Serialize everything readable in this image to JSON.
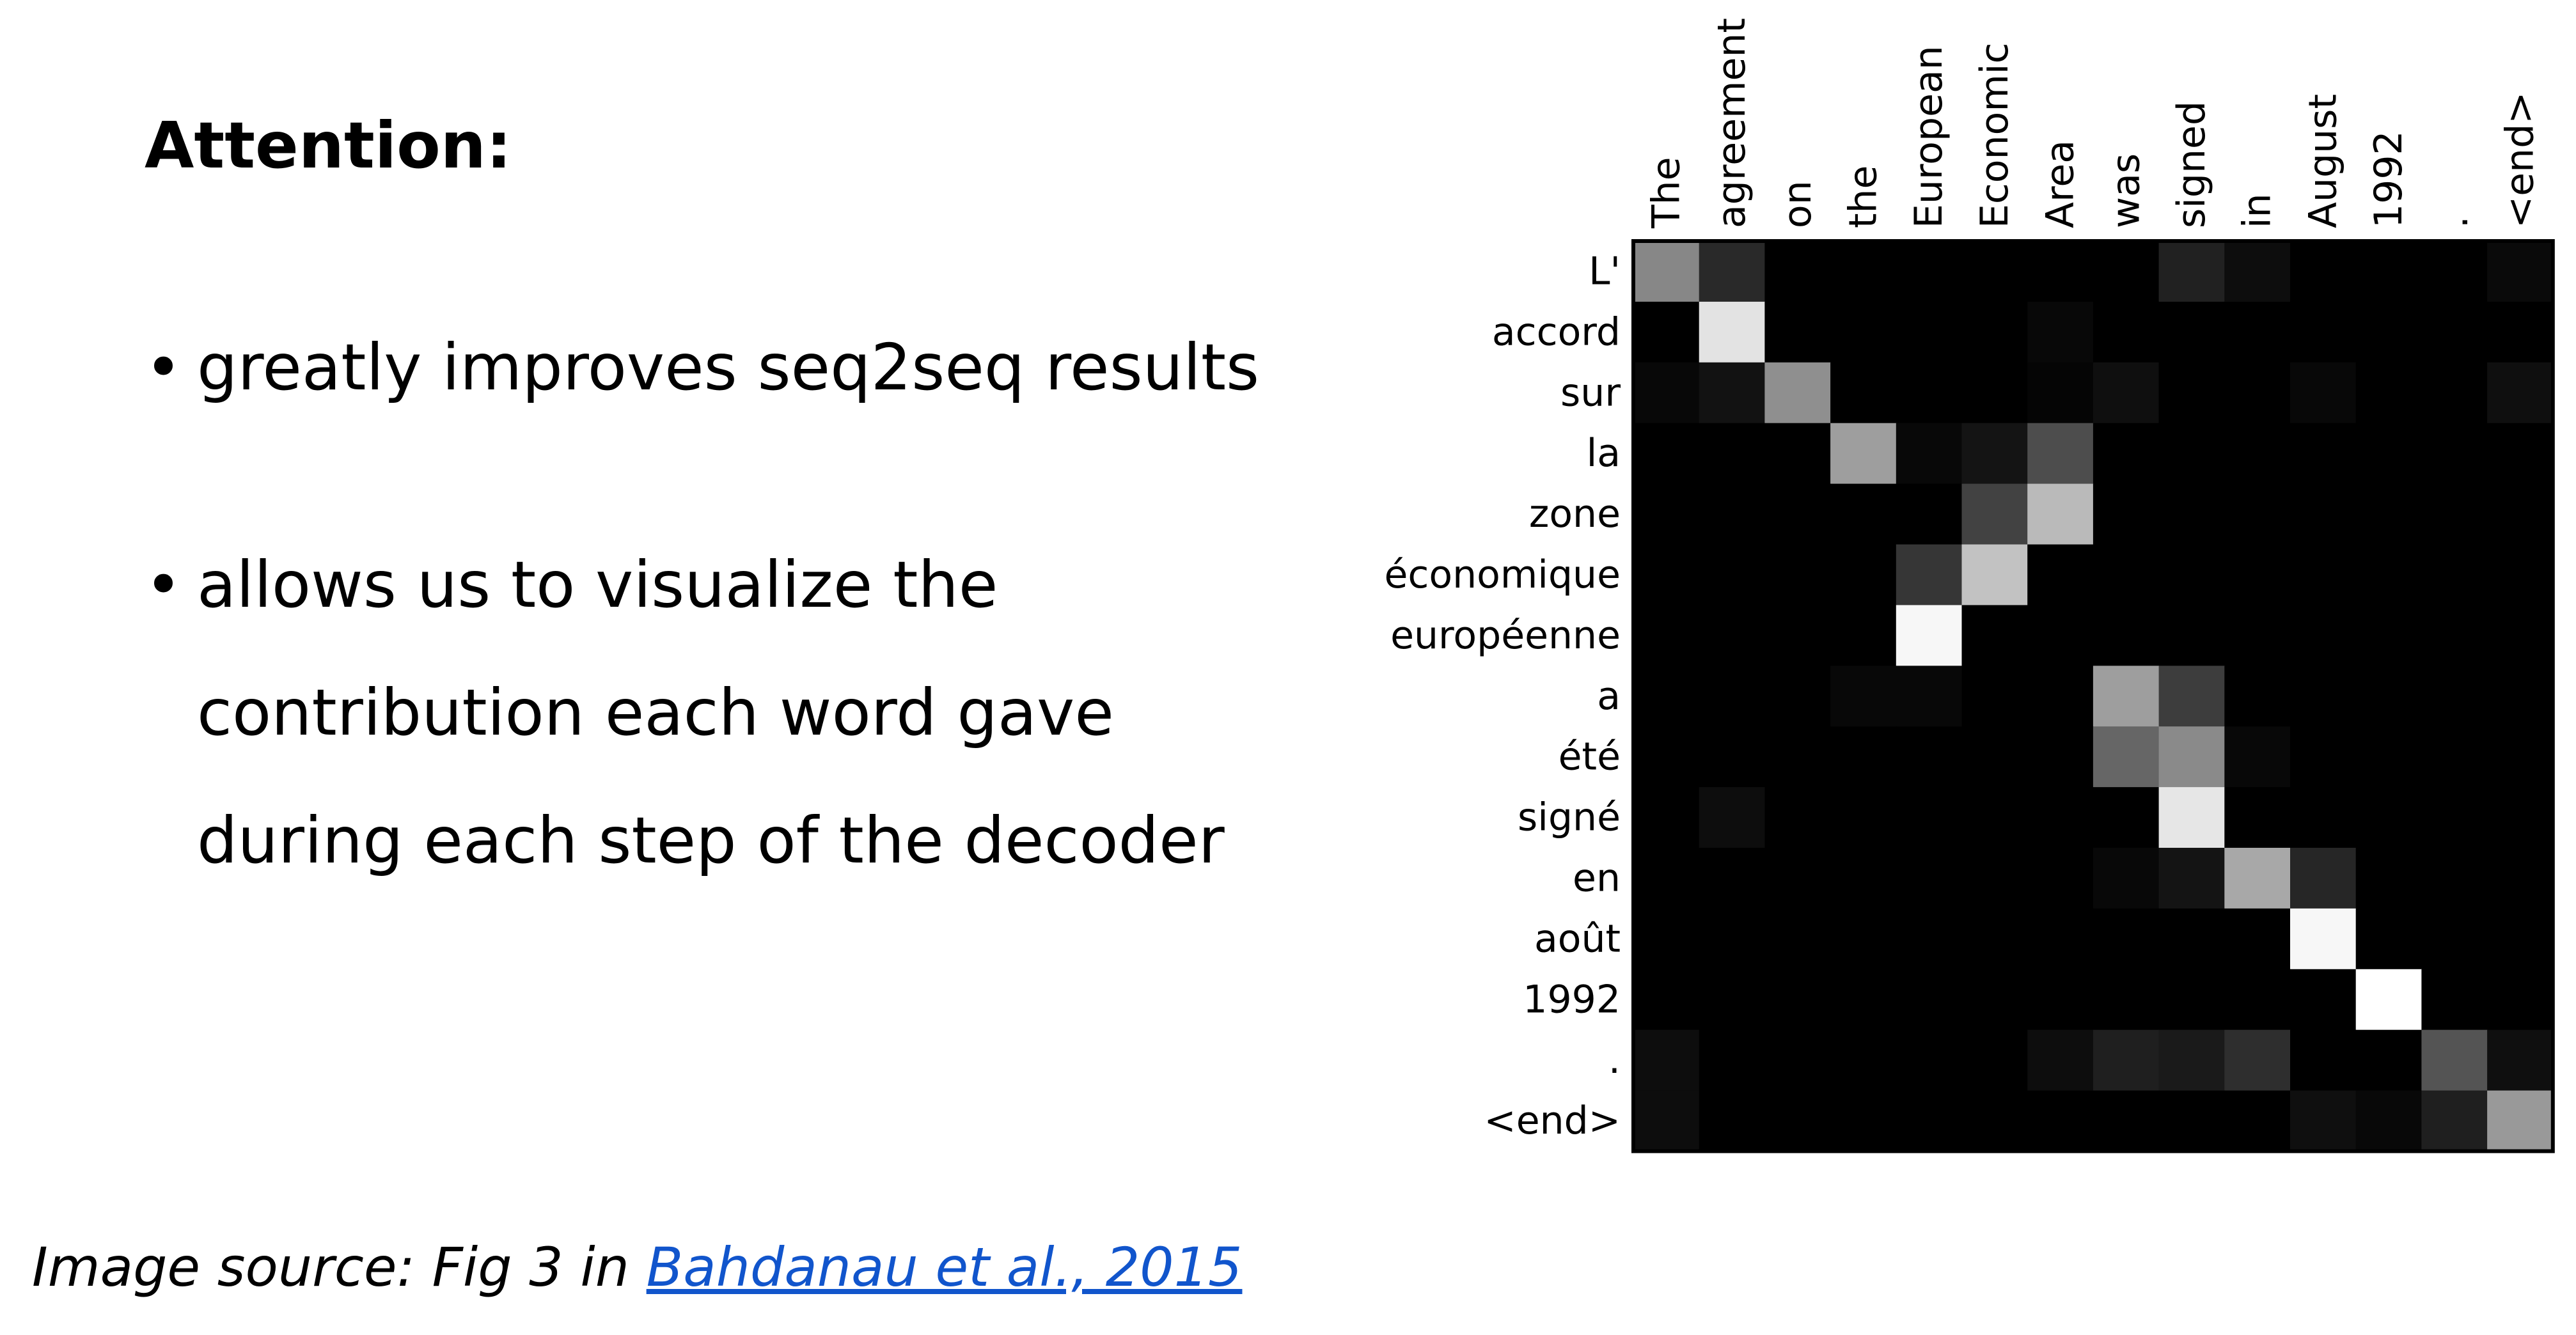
{
  "heading": "Attention:",
  "bullets": [
    {
      "lines": [
        "greatly improves seq2seq results"
      ]
    },
    {
      "lines": [
        "allows us to visualize the",
        "contribution each word gave",
        "during each step of the decoder"
      ]
    }
  ],
  "bullet_glyph": "•",
  "source": {
    "prefix": "Image source: Fig 3 in ",
    "link_text": "Bahdanau et al., 2015"
  },
  "colors": {
    "link": "#1155cc",
    "matrix_background": "#000000"
  },
  "chart_data": {
    "type": "heatmap",
    "x_labels": [
      "The",
      "agreement",
      "on",
      "the",
      "European",
      "Economic",
      "Area",
      "was",
      "signed",
      "in",
      "August",
      "1992",
      ".",
      "<end>"
    ],
    "y_labels": [
      "L'",
      "accord",
      "sur",
      "la",
      "zone",
      "économique",
      "européenne",
      "a",
      "été",
      "signé",
      "en",
      "août",
      "1992",
      ".",
      "<end>"
    ],
    "x_axis_position": "top",
    "colormap": "grayscale (black = 0, white = 1)",
    "values": [
      [
        0.53,
        0.16,
        0,
        0,
        0,
        0,
        0,
        0,
        0.13,
        0.05,
        0,
        0,
        0,
        0.04
      ],
      [
        0,
        0.89,
        0,
        0,
        0,
        0,
        0.03,
        0,
        0,
        0,
        0,
        0,
        0,
        0
      ],
      [
        0.03,
        0.07,
        0.56,
        0,
        0,
        0,
        0.02,
        0.06,
        0,
        0,
        0.03,
        0,
        0,
        0.06
      ],
      [
        0,
        0,
        0,
        0.62,
        0.03,
        0.08,
        0.3,
        0,
        0,
        0,
        0,
        0,
        0,
        0
      ],
      [
        0,
        0,
        0,
        0,
        0,
        0.26,
        0.73,
        0,
        0,
        0,
        0,
        0,
        0,
        0
      ],
      [
        0,
        0,
        0,
        0,
        0.21,
        0.76,
        0,
        0,
        0,
        0,
        0,
        0,
        0,
        0
      ],
      [
        0,
        0,
        0,
        0,
        0.97,
        0,
        0,
        0,
        0,
        0,
        0,
        0,
        0,
        0
      ],
      [
        0,
        0,
        0,
        0.03,
        0.03,
        0,
        0,
        0.62,
        0.24,
        0,
        0,
        0,
        0,
        0
      ],
      [
        0,
        0,
        0,
        0,
        0,
        0,
        0,
        0.4,
        0.54,
        0.03,
        0,
        0,
        0,
        0
      ],
      [
        0,
        0.05,
        0,
        0,
        0,
        0,
        0,
        0,
        0.9,
        0,
        0,
        0,
        0,
        0
      ],
      [
        0,
        0,
        0,
        0,
        0,
        0,
        0,
        0.03,
        0.08,
        0.66,
        0.15,
        0,
        0,
        0
      ],
      [
        0,
        0,
        0,
        0,
        0,
        0,
        0,
        0,
        0,
        0,
        0.97,
        0,
        0,
        0
      ],
      [
        0,
        0,
        0,
        0,
        0,
        0,
        0,
        0,
        0,
        0,
        0,
        1.0,
        0,
        0
      ],
      [
        0.05,
        0,
        0,
        0,
        0,
        0,
        0.05,
        0.12,
        0.1,
        0.18,
        0,
        0,
        0.33,
        0.06
      ],
      [
        0.05,
        0,
        0,
        0,
        0,
        0,
        0,
        0,
        0,
        0,
        0.06,
        0.03,
        0.12,
        0.6
      ]
    ]
  }
}
